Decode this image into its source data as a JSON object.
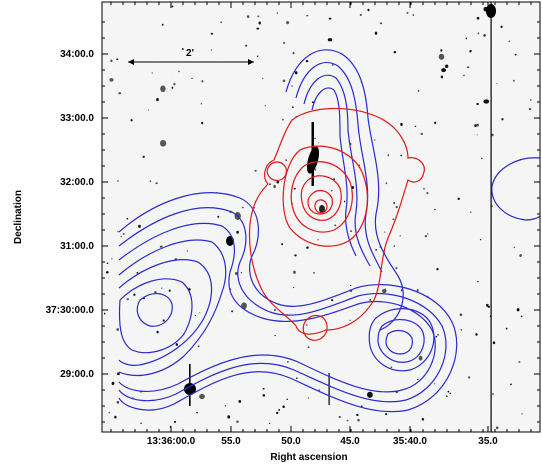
{
  "figure": {
    "x_axis_title": "Right ascension",
    "y_axis_title": "Declination",
    "x_tick_labels": [
      "13:36:00.0",
      "55.0",
      "50.0",
      "45.0",
      "35:40.0",
      "35.0"
    ],
    "y_tick_labels": [
      "34:00.0",
      "33:00.0",
      "32:00.0",
      "31:00.0",
      "37:30:00.0",
      "29:00.0"
    ],
    "scale_bar_label": "2'",
    "contour_colors": {
      "blue": "#2a2ad0",
      "red": "#e01818"
    }
  }
}
